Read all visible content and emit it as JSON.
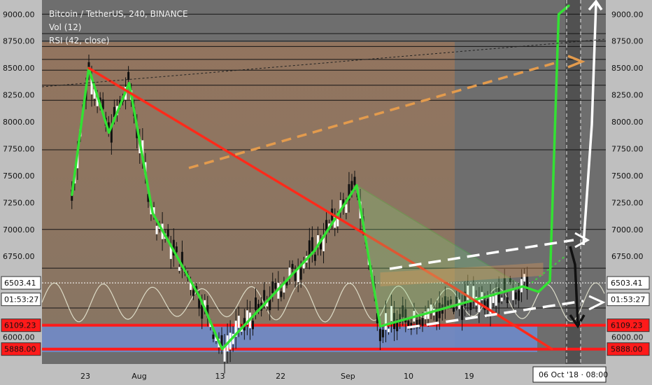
{
  "legend": {
    "line1": "Bitcoin / TetherUS, 240, BINANCE",
    "line2": "Vol (12)",
    "line3": "RSI (42, close)"
  },
  "chart_data": {
    "type": "line",
    "ylim": [
      5860,
      9080
    ],
    "y_ticks": [
      {
        "value": 9000,
        "label": "9000.00"
      },
      {
        "value": 8750,
        "label": "8750.00"
      },
      {
        "value": 8500,
        "label": "8500.00"
      },
      {
        "value": 8250,
        "label": "8250.00"
      },
      {
        "value": 8000,
        "label": "8000.00"
      },
      {
        "value": 7750,
        "label": "7750.00"
      },
      {
        "value": 7500,
        "label": "7500.00"
      },
      {
        "value": 7250,
        "label": "7250.00"
      },
      {
        "value": 7000,
        "label": "7000.00"
      },
      {
        "value": 6750,
        "label": "6750.00"
      },
      {
        "value": 6000,
        "label": "6000.00"
      }
    ],
    "x_ticks": [
      {
        "label": "23",
        "day": -8
      },
      {
        "label": "Aug",
        "day": 0
      },
      {
        "label": "13",
        "day": 12
      },
      {
        "label": "22",
        "day": 21
      },
      {
        "label": "Sep",
        "day": 31
      },
      {
        "label": "10",
        "day": 40
      },
      {
        "label": "19",
        "day": 49
      }
    ],
    "horizontal_levels": [
      9000,
      8820,
      8750,
      8700,
      8580,
      8480,
      8340,
      8200,
      7740,
      7000,
      6640,
      6270
    ],
    "price_tags": [
      {
        "value": 6503.41,
        "label": "6503.41",
        "style": "white"
      },
      {
        "value": 6350,
        "label": "01:53:27",
        "style": "white"
      },
      {
        "value": 6109.23,
        "label": "6109.23",
        "style": "red"
      },
      {
        "value": 5888.0,
        "label": "5888.00",
        "style": "red"
      }
    ],
    "red_levels": [
      6109.23,
      5888.0
    ],
    "current_price": 6503.41,
    "crosshair_label": "06 Oct '18 · 08:00",
    "series": [
      {
        "role": "zigzag",
        "points": [
          [
            -10,
            7320
          ],
          [
            -7.5,
            8500
          ],
          [
            -4.5,
            7900
          ],
          [
            -1.5,
            8360
          ],
          [
            2,
            7150
          ],
          [
            9,
            6370
          ],
          [
            12.3,
            5888
          ],
          [
            26,
            6800
          ],
          [
            32.3,
            7410
          ],
          [
            35.8,
            6100
          ],
          [
            57,
            6470
          ]
        ]
      },
      {
        "role": "downtrend",
        "points": [
          [
            -7.5,
            8500
          ],
          [
            47,
            6450
          ],
          [
            61.3,
            5888
          ]
        ]
      },
      {
        "role": "projection",
        "points": [
          [
            57,
            6470
          ],
          [
            59.3,
            6420
          ],
          [
            61,
            6520
          ],
          [
            62.3,
            9000
          ],
          [
            63.8,
            9080
          ]
        ]
      }
    ]
  }
}
